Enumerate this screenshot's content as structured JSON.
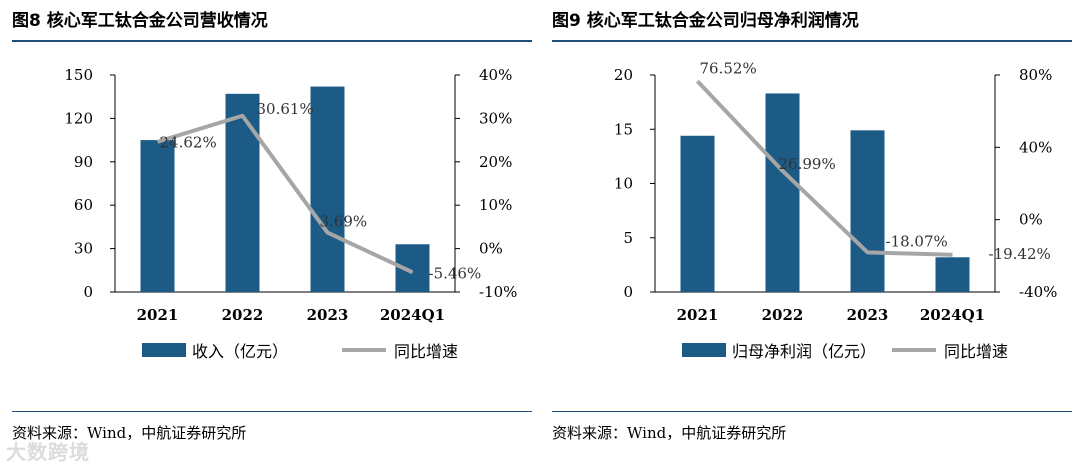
{
  "watermark": "大数跨境",
  "colors": {
    "bar": "#1b5b86",
    "line": "#a6a6a6",
    "rule": "#1f4e79",
    "axis": "#000000"
  },
  "chart_data": [
    {
      "type": "bar",
      "figure_title": "图8  核心军工钛合金公司营收情况",
      "categories": [
        "2021",
        "2022",
        "2023",
        "2024Q1"
      ],
      "series": [
        {
          "name": "收入（亿元）",
          "type": "bar",
          "axis": "left",
          "values": [
            105,
            137,
            142,
            33
          ]
        },
        {
          "name": "同比增速",
          "type": "line",
          "axis": "right",
          "values": [
            24.62,
            30.61,
            3.69,
            -5.46
          ]
        }
      ],
      "data_labels": [
        "24.62%",
        "30.61%",
        "3.69%",
        "-5.46%"
      ],
      "left_axis": {
        "ylim": [
          0,
          150
        ],
        "ticks": [
          0,
          30,
          60,
          90,
          120,
          150
        ]
      },
      "right_axis": {
        "ylim": [
          -10,
          40
        ],
        "ticks": [
          -10,
          0,
          10,
          20,
          30,
          40
        ],
        "tick_labels": [
          "-10%",
          "0%",
          "10%",
          "20%",
          "30%",
          "40%"
        ]
      },
      "legend": {
        "position": "bottom",
        "bar_label": "收入（亿元）",
        "line_label": "同比增速"
      },
      "source": "资料来源：Wind，中航证券研究所"
    },
    {
      "type": "bar",
      "figure_title": "图9  核心军工钛合金公司归母净利润情况",
      "categories": [
        "2021",
        "2022",
        "2023",
        "2024Q1"
      ],
      "series": [
        {
          "name": "归母净利润（亿元）",
          "type": "bar",
          "axis": "left",
          "values": [
            14.4,
            18.3,
            14.9,
            3.2
          ]
        },
        {
          "name": "同比增速",
          "type": "line",
          "axis": "right",
          "values": [
            76.52,
            26.99,
            -18.07,
            -19.42
          ]
        }
      ],
      "data_labels": [
        "76.52%",
        "26.99%",
        "-18.07%",
        "-19.42%"
      ],
      "left_axis": {
        "ylim": [
          0,
          20
        ],
        "ticks": [
          0,
          5,
          10,
          15,
          20
        ]
      },
      "right_axis": {
        "ylim": [
          -40,
          80
        ],
        "ticks": [
          -40,
          0,
          40,
          80
        ],
        "tick_labels": [
          "-40%",
          "0%",
          "40%",
          "80%"
        ]
      },
      "legend": {
        "position": "bottom",
        "bar_label": "归母净利润（亿元）",
        "line_label": "同比增速"
      },
      "source": "资料来源：Wind，中航证券研究所"
    }
  ]
}
